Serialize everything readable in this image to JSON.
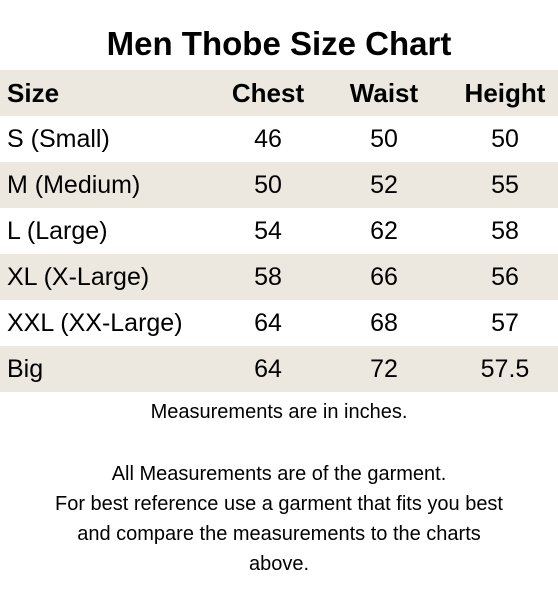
{
  "title": "Men Thobe Size Chart",
  "table": {
    "headers": [
      "Size",
      "Chest",
      "Waist",
      "Height"
    ],
    "rows": [
      {
        "size": "S (Small)",
        "chest": "46",
        "waist": "50",
        "height": "50"
      },
      {
        "size": "M (Medium)",
        "chest": "50",
        "waist": "52",
        "height": "55"
      },
      {
        "size": "L (Large)",
        "chest": "54",
        "waist": "62",
        "height": "58"
      },
      {
        "size": "XL (X-Large)",
        "chest": "58",
        "waist": "66",
        "height": "56"
      },
      {
        "size": "XXL (XX-Large)",
        "chest": "64",
        "waist": "68",
        "height": "57"
      },
      {
        "size": "Big",
        "chest": "64",
        "waist": "72",
        "height": "57.5"
      }
    ]
  },
  "notes": {
    "units": "Measurements are in inches.",
    "garment_lines": [
      "All Measurements are of the garment.",
      "For best reference use a garment that fits you best",
      "and compare the measurements to the charts",
      "above."
    ]
  },
  "colors": {
    "row_shade": "#ede8df",
    "background": "#ffffff",
    "text": "#000000"
  }
}
